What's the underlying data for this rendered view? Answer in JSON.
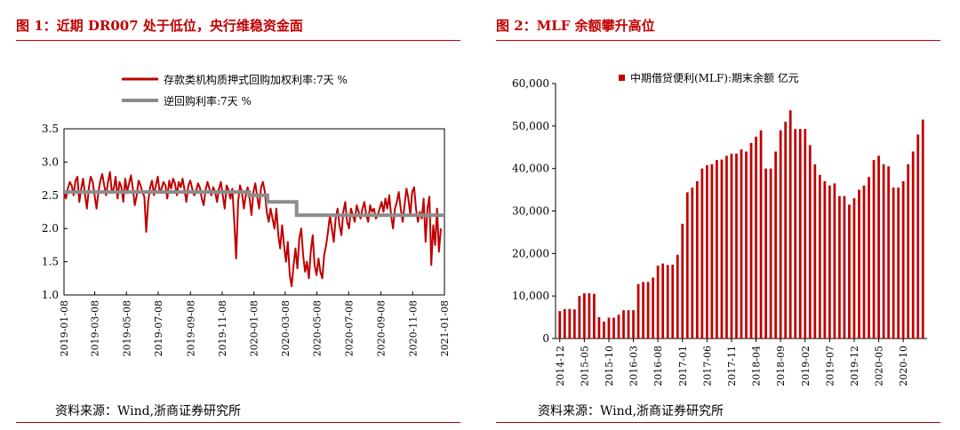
{
  "left": {
    "title": "图 1：近期 DR007 处于低位，央行维稳资金面",
    "source": "资料来源：Wind,浙商证券研究所",
    "chart_data": {
      "type": "line",
      "title": "",
      "xlabel": "",
      "ylabel": "",
      "ylim": [
        1.0,
        3.5
      ],
      "yticks": [
        "1.0",
        "1.5",
        "2.0",
        "2.5",
        "3.0",
        "3.5"
      ],
      "xticks": [
        "2019-01-08",
        "2019-03-08",
        "2019-05-08",
        "2019-07-08",
        "2019-09-08",
        "2019-11-08",
        "2020-01-08",
        "2020-03-08",
        "2020-05-08",
        "2020-07-08",
        "2020-09-08",
        "2020-11-08",
        "2021-01-08"
      ],
      "legend": "top",
      "series": [
        {
          "name": "存款类机构质押式回购加权利率:7天 %",
          "color": "#c00000",
          "values": [
            2.55,
            2.45,
            2.6,
            2.7,
            2.65,
            2.5,
            2.72,
            2.78,
            2.4,
            2.6,
            2.75,
            2.5,
            2.3,
            2.62,
            2.78,
            2.7,
            2.5,
            2.3,
            2.55,
            2.72,
            2.82,
            2.65,
            2.5,
            2.7,
            2.85,
            2.55,
            2.6,
            2.78,
            2.45,
            2.7,
            2.62,
            2.4,
            2.75,
            2.55,
            2.68,
            2.8,
            2.6,
            2.35,
            2.5,
            2.72,
            2.65,
            2.55,
            2.48,
            1.95,
            2.4,
            2.62,
            2.72,
            2.5,
            2.65,
            2.78,
            2.55,
            2.6,
            2.7,
            2.65,
            2.45,
            2.72,
            2.6,
            2.75,
            2.68,
            2.5,
            2.7,
            2.62,
            2.75,
            2.58,
            2.4,
            2.65,
            2.72,
            2.6,
            2.5,
            2.55,
            2.68,
            2.62,
            2.45,
            2.35,
            2.58,
            2.7,
            2.6,
            2.5,
            2.62,
            2.55,
            2.4,
            2.6,
            2.7,
            2.5,
            2.3,
            2.65,
            2.58,
            2.45,
            2.6,
            2.1,
            1.55,
            2.4,
            2.65,
            2.55,
            2.3,
            2.5,
            2.62,
            2.45,
            2.2,
            2.55,
            2.68,
            2.48,
            2.3,
            2.62,
            2.7,
            2.55,
            2.25,
            2.1,
            2.3,
            2.15,
            2.0,
            2.3,
            1.9,
            1.7,
            2.05,
            1.75,
            1.5,
            1.8,
            1.3,
            1.13,
            1.45,
            1.7,
            1.4,
            1.85,
            2.0,
            1.6,
            1.35,
            1.5,
            1.25,
            1.65,
            1.9,
            1.45,
            1.3,
            1.55,
            1.35,
            1.25,
            1.6,
            1.75,
            1.95,
            2.2,
            2.0,
            1.8,
            2.15,
            2.3,
            2.05,
            1.9,
            2.25,
            2.4,
            2.1,
            2.0,
            2.3,
            2.2,
            2.1,
            2.35,
            2.25,
            2.15,
            2.3,
            2.4,
            2.2,
            2.1,
            2.35,
            2.25,
            2.3,
            2.15,
            2.2,
            2.3,
            2.4,
            2.25,
            2.45,
            2.3,
            2.5,
            2.2,
            2.0,
            2.3,
            2.4,
            2.55,
            2.3,
            2.1,
            2.35,
            2.6,
            2.45,
            2.2,
            2.55,
            2.62,
            2.3,
            2.1,
            2.25,
            2.15,
            2.45,
            1.8,
            2.3,
            2.48,
            1.45,
            2.05,
            1.75,
            2.3,
            1.65,
            2.0
          ]
        },
        {
          "name": "逆回购利率:7天 %",
          "color": "#8c8c8c",
          "steps": [
            {
              "from": "2019-01-08",
              "to": "2019-12-30",
              "value": 2.55
            },
            {
              "from": "2019-12-30",
              "to": "2020-02-03",
              "value": 2.5
            },
            {
              "from": "2020-02-03",
              "to": "2020-03-30",
              "value": 2.4
            },
            {
              "from": "2020-03-30",
              "to": "2021-01-08",
              "value": 2.2
            }
          ]
        }
      ]
    }
  },
  "right": {
    "title": "图 2：MLF 余额攀升高位",
    "source": "资料来源：Wind,浙商证券研究所",
    "chart_data": {
      "type": "bar",
      "title": "",
      "xlabel": "",
      "ylabel": "",
      "ylim": [
        0,
        60000
      ],
      "yticks": [
        "0",
        "10,000",
        "20,000",
        "30,000",
        "40,000",
        "50,000",
        "60,000"
      ],
      "xticks": [
        "2014-12",
        "2015-05",
        "2015-10",
        "2016-03",
        "2016-08",
        "2017-01",
        "2017-06",
        "2017-11",
        "2018-04",
        "2018-09",
        "2019-02",
        "2019-07",
        "2019-12",
        "2020-05",
        "2020-10"
      ],
      "legend": "top",
      "series": [
        {
          "name": "中期借贷便利(MLF):期末余额 亿元",
          "color": "#c00000",
          "values": [
            6445,
            6945,
            6945,
            6850,
            10000,
            10630,
            10630,
            10500,
            5000,
            3950,
            4900,
            4900,
            5600,
            6658,
            6658,
            6658,
            12818,
            13308,
            13308,
            14338,
            17148,
            17638,
            17288,
            17388,
            19700,
            27000,
            34400,
            35500,
            37000,
            40000,
            40800,
            41000,
            42000,
            42100,
            43000,
            43500,
            43500,
            44500,
            44000,
            46000,
            47500,
            49000,
            40000,
            40000,
            44000,
            49000,
            51000,
            53700,
            49300,
            49300,
            49300,
            45500,
            41000,
            38500,
            37000,
            36000,
            36500,
            33500,
            33500,
            31500,
            33000,
            35000,
            36000,
            38000,
            42000,
            43000,
            41000,
            40500,
            35500,
            35500,
            37000,
            41000,
            44000,
            48000,
            51500
          ]
        }
      ]
    }
  }
}
